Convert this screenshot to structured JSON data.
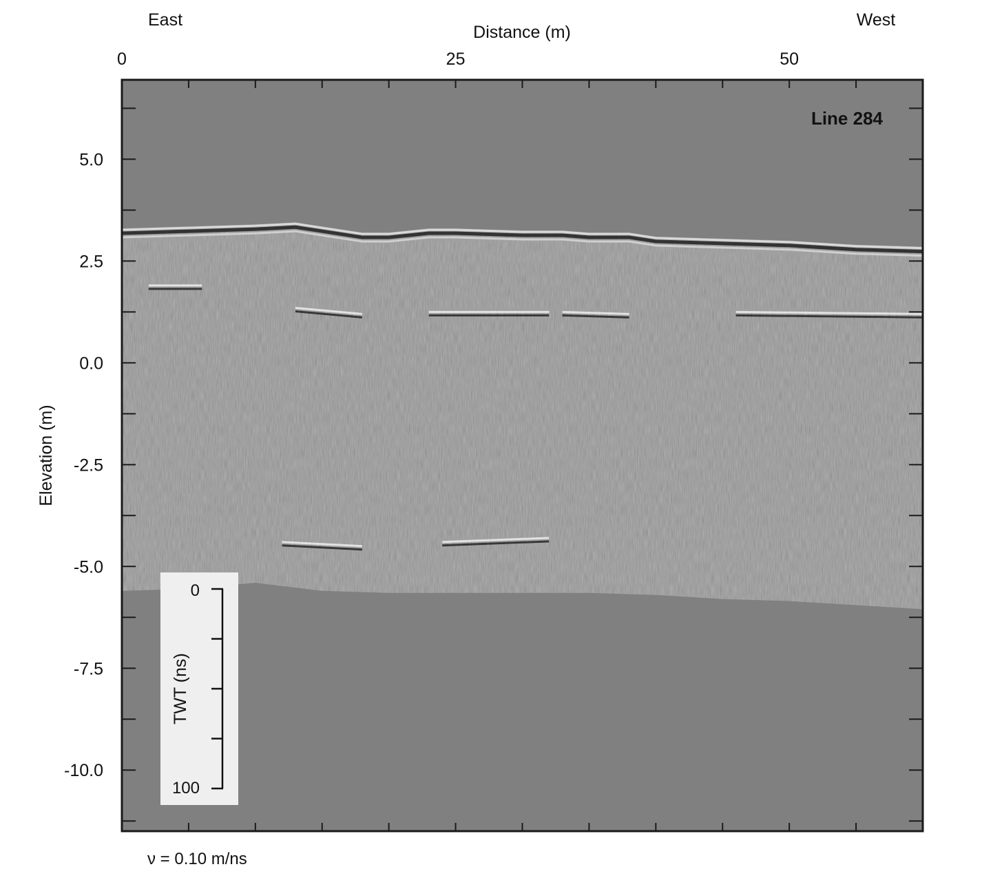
{
  "chart_data": {
    "type": "heatmap",
    "title": "Line 284",
    "xlabel": "Distance (m)",
    "ylabel": "Elevation (m)",
    "x_ticks": [
      0,
      25,
      50
    ],
    "x_minor_step": 5,
    "xlim": [
      0,
      60
    ],
    "y_ticks": [
      5.0,
      2.5,
      0.0,
      -2.5,
      -5.0,
      -7.5,
      -10.0
    ],
    "y_tick_labels": [
      "5.0",
      "2.5",
      "0.0",
      "-2.5",
      "-5.0",
      "-7.5",
      "-10.0"
    ],
    "y_minor_step": 1.25,
    "ylim": [
      -11.5,
      6.95
    ],
    "direction_left": "East",
    "direction_right": "West",
    "velocity_note": "ν = 0.10 m/ns",
    "twt_scale": {
      "label": "TWT (ns)",
      "min": 0,
      "max": 100,
      "step": 25,
      "top_label": "0",
      "bottom_label": "100"
    },
    "ground_surface": {
      "distance": [
        0,
        5,
        10,
        13,
        15,
        18,
        20,
        23,
        25,
        30,
        33,
        35,
        38,
        40,
        45,
        50,
        55,
        60
      ],
      "elevation": [
        3.3,
        3.35,
        3.4,
        3.45,
        3.35,
        3.2,
        3.2,
        3.3,
        3.3,
        3.25,
        3.25,
        3.2,
        3.2,
        3.1,
        3.05,
        3.0,
        2.9,
        2.85
      ]
    },
    "data_base": {
      "distance": [
        0,
        5,
        10,
        15,
        20,
        25,
        30,
        35,
        40,
        45,
        50,
        55,
        60
      ],
      "elevation": [
        -5.6,
        -5.55,
        -5.4,
        -5.6,
        -5.65,
        -5.65,
        -5.65,
        -5.65,
        -5.7,
        -5.8,
        -5.85,
        -5.95,
        -6.05
      ]
    },
    "reflectors": [
      {
        "distance": [
          2,
          6
        ],
        "elevation": [
          1.9,
          1.9
        ]
      },
      {
        "distance": [
          13,
          18
        ],
        "elevation": [
          1.35,
          1.2
        ]
      },
      {
        "distance": [
          23,
          32
        ],
        "elevation": [
          1.25,
          1.25
        ]
      },
      {
        "distance": [
          33,
          38
        ],
        "elevation": [
          1.25,
          1.2
        ]
      },
      {
        "distance": [
          46,
          60
        ],
        "elevation": [
          1.25,
          1.2
        ]
      },
      {
        "distance": [
          24,
          32
        ],
        "elevation": [
          -4.4,
          -4.3
        ]
      },
      {
        "distance": [
          12,
          18
        ],
        "elevation": [
          -4.4,
          -4.5
        ]
      }
    ],
    "colors": {
      "background": "#808080",
      "frame": "#1a1a1a",
      "legend_box": "#efefef"
    }
  }
}
